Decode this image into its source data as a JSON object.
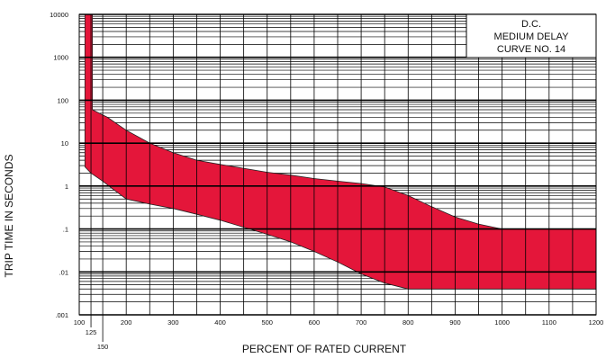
{
  "chart_data": {
    "type": "area",
    "title_lines": [
      "D.C.",
      "MEDIUM DELAY",
      "CURVE NO. 14"
    ],
    "xlabel": "PERCENT OF RATED CURRENT",
    "ylabel": "TRIP TIME IN SECONDS",
    "x_scale": "linear",
    "y_scale": "log",
    "xlim": [
      100,
      1200
    ],
    "ylim": [
      0.001,
      10000
    ],
    "x_ticks": [
      100,
      200,
      300,
      400,
      500,
      600,
      700,
      800,
      900,
      1000,
      1100,
      1200
    ],
    "x_tick_labels": [
      "100",
      "200",
      "300",
      "400",
      "500",
      "600",
      "700",
      "800",
      "900",
      "1000",
      "1100",
      "1200"
    ],
    "x_extra_ticks": [
      125,
      150
    ],
    "x_extra_tick_labels": [
      "125",
      "150"
    ],
    "y_ticks": [
      0.001,
      0.01,
      0.1,
      1,
      10,
      100,
      1000,
      10000
    ],
    "y_tick_labels": [
      ".001",
      ".01",
      ".1",
      "1",
      "10",
      "100",
      "1000",
      "10000"
    ],
    "grid": true,
    "band_color": "#e4163a",
    "upper_curve": [
      {
        "x": 128,
        "y": 10000
      },
      {
        "x": 128,
        "y": 60
      },
      {
        "x": 160,
        "y": 40
      },
      {
        "x": 200,
        "y": 20
      },
      {
        "x": 250,
        "y": 10
      },
      {
        "x": 300,
        "y": 6
      },
      {
        "x": 350,
        "y": 4
      },
      {
        "x": 400,
        "y": 3.2
      },
      {
        "x": 450,
        "y": 2.6
      },
      {
        "x": 500,
        "y": 2.1
      },
      {
        "x": 550,
        "y": 1.8
      },
      {
        "x": 600,
        "y": 1.5
      },
      {
        "x": 650,
        "y": 1.3
      },
      {
        "x": 700,
        "y": 1.15
      },
      {
        "x": 750,
        "y": 0.95
      },
      {
        "x": 800,
        "y": 0.6
      },
      {
        "x": 850,
        "y": 0.33
      },
      {
        "x": 900,
        "y": 0.19
      },
      {
        "x": 950,
        "y": 0.13
      },
      {
        "x": 1000,
        "y": 0.1
      },
      {
        "x": 1200,
        "y": 0.1
      }
    ],
    "lower_curve": [
      {
        "x": 112,
        "y": 10000
      },
      {
        "x": 112,
        "y": 2.8
      },
      {
        "x": 125,
        "y": 2
      },
      {
        "x": 150,
        "y": 1.3
      },
      {
        "x": 175,
        "y": 0.8
      },
      {
        "x": 200,
        "y": 0.5
      },
      {
        "x": 250,
        "y": 0.38
      },
      {
        "x": 300,
        "y": 0.3
      },
      {
        "x": 350,
        "y": 0.22
      },
      {
        "x": 400,
        "y": 0.16
      },
      {
        "x": 450,
        "y": 0.11
      },
      {
        "x": 500,
        "y": 0.075
      },
      {
        "x": 550,
        "y": 0.05
      },
      {
        "x": 600,
        "y": 0.03
      },
      {
        "x": 650,
        "y": 0.017
      },
      {
        "x": 700,
        "y": 0.009
      },
      {
        "x": 750,
        "y": 0.0055
      },
      {
        "x": 800,
        "y": 0.004
      },
      {
        "x": 1200,
        "y": 0.004
      }
    ]
  }
}
